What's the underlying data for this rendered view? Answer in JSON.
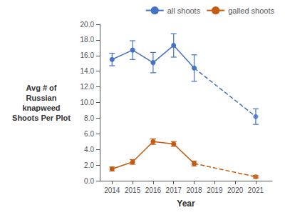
{
  "chart_data": {
    "type": "line",
    "xlabel": "Year",
    "ylabel": "Avg # of\nRussian\nknapweed\nShoots Per Plot",
    "xlim": [
      2013.4,
      2021.8
    ],
    "xticks": [
      2014,
      2015,
      2016,
      2017,
      2018,
      2019,
      2020,
      2021
    ],
    "ylim": [
      0,
      20
    ],
    "yticks": [
      {
        "value": 0,
        "label": "0.0"
      },
      {
        "value": 2,
        "label": "2.0"
      },
      {
        "value": 4,
        "label": "4.0"
      },
      {
        "value": 6,
        "label": "6.0"
      },
      {
        "value": 8,
        "label": "8.0"
      },
      {
        "value": 10,
        "label": "10.0"
      },
      {
        "value": 12,
        "label": "12.0"
      },
      {
        "value": 14,
        "label": "14.0"
      },
      {
        "value": 16,
        "label": "16.0"
      },
      {
        "value": 18,
        "label": "18.0"
      },
      {
        "value": 20,
        "label": "20.0"
      }
    ],
    "grid": false,
    "legend": "upper right",
    "series": [
      {
        "name": "all shoots",
        "type": "line",
        "color": "#4472C4",
        "line_style": "solid",
        "marker": "circle",
        "x": [
          2014,
          2015,
          2016,
          2017,
          2018
        ],
        "values": [
          15.5,
          16.7,
          15.1,
          17.3,
          14.4
        ],
        "yerr": [
          0.8,
          1.2,
          1.3,
          1.5,
          1.7
        ]
      },
      {
        "type": "line",
        "color": "#4472C4",
        "line_style": "dashed",
        "marker": "none",
        "x": [
          2018,
          2021
        ],
        "values": [
          14.4,
          8.2
        ]
      },
      {
        "type": "scatter",
        "color": "#4472C4",
        "marker": "circle",
        "x": [
          2021
        ],
        "values": [
          8.2
        ],
        "yerr": [
          1.0
        ]
      },
      {
        "name": "galled shoots",
        "type": "line",
        "color": "#C55A11",
        "line_style": "solid",
        "marker": "circle",
        "x": [
          2014,
          2015,
          2016,
          2017,
          2018
        ],
        "values": [
          1.5,
          2.4,
          5.0,
          4.7,
          2.2
        ],
        "yerr": [
          0.25,
          0.3,
          0.35,
          0.3,
          0.3
        ]
      },
      {
        "type": "line",
        "color": "#C55A11",
        "line_style": "dashed",
        "marker": "none",
        "x": [
          2018,
          2021
        ],
        "values": [
          2.2,
          0.5
        ]
      },
      {
        "type": "scatter",
        "color": "#C55A11",
        "marker": "circle",
        "x": [
          2021
        ],
        "values": [
          0.5
        ],
        "yerr": [
          0.15
        ]
      }
    ]
  }
}
